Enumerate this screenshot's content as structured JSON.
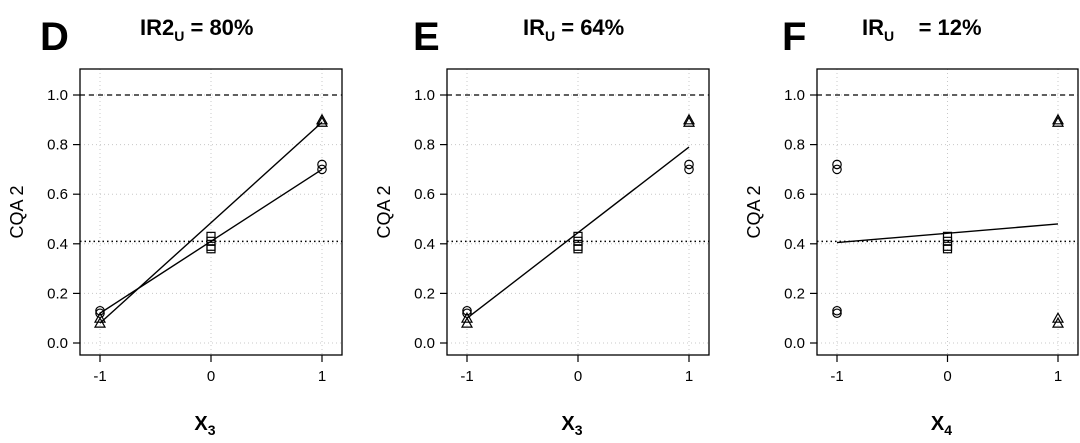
{
  "chart_data": [
    {
      "type": "scatter",
      "panel_letter": "D",
      "title": {
        "main": "IR2",
        "sub": "U",
        "rest": " = 80%"
      },
      "ylabel": "CQA 2",
      "xlabel": {
        "main": "X",
        "sub": "3"
      },
      "xlim": [
        -1,
        1
      ],
      "ylim": [
        0,
        1
      ],
      "x_ticks": [
        "-1",
        "0",
        "1"
      ],
      "y_ticks": [
        "0.0",
        "0.2",
        "0.4",
        "0.6",
        "0.8",
        "1.0"
      ],
      "reference_lines": {
        "dashed": 1.0,
        "dotted": 0.41
      },
      "series": [
        {
          "marker": "circle",
          "points": [
            [
              -1,
              0.13
            ],
            [
              -1,
              0.12
            ],
            [
              1,
              0.72
            ],
            [
              1,
              0.7
            ]
          ]
        },
        {
          "marker": "square",
          "points": [
            [
              0,
              0.43
            ],
            [
              0,
              0.41
            ],
            [
              0,
              0.39
            ],
            [
              0,
              0.38
            ]
          ]
        },
        {
          "marker": "triangle",
          "points": [
            [
              -1,
              0.1
            ],
            [
              -1,
              0.08
            ],
            [
              1,
              0.9
            ],
            [
              1,
              0.89
            ]
          ]
        }
      ],
      "fit_lines": [
        {
          "x": [
            -1,
            1
          ],
          "y": [
            0.08,
            0.89
          ]
        },
        {
          "x": [
            -1,
            1
          ],
          "y": [
            0.12,
            0.7
          ]
        }
      ]
    },
    {
      "type": "scatter",
      "panel_letter": "E",
      "title": {
        "main": "IR",
        "sub": "U",
        "rest": " = 64%"
      },
      "ylabel": "CQA 2",
      "xlabel": {
        "main": "X",
        "sub": "3"
      },
      "xlim": [
        -1,
        1
      ],
      "ylim": [
        0,
        1
      ],
      "x_ticks": [
        "-1",
        "0",
        "1"
      ],
      "y_ticks": [
        "0.0",
        "0.2",
        "0.4",
        "0.6",
        "0.8",
        "1.0"
      ],
      "reference_lines": {
        "dashed": 1.0,
        "dotted": 0.41
      },
      "series": [
        {
          "marker": "circle",
          "points": [
            [
              -1,
              0.13
            ],
            [
              -1,
              0.12
            ],
            [
              1,
              0.72
            ],
            [
              1,
              0.7
            ]
          ]
        },
        {
          "marker": "square",
          "points": [
            [
              0,
              0.43
            ],
            [
              0,
              0.41
            ],
            [
              0,
              0.39
            ],
            [
              0,
              0.38
            ]
          ]
        },
        {
          "marker": "triangle",
          "points": [
            [
              -1,
              0.1
            ],
            [
              -1,
              0.08
            ],
            [
              1,
              0.9
            ],
            [
              1,
              0.89
            ]
          ]
        }
      ],
      "fit_lines": [
        {
          "x": [
            -1,
            1
          ],
          "y": [
            0.1,
            0.79
          ]
        }
      ]
    },
    {
      "type": "scatter",
      "panel_letter": "F",
      "title": {
        "main": "IR",
        "sub": "U",
        "rest": "    = 12%"
      },
      "ylabel": "CQA 2",
      "xlabel": {
        "main": "X",
        "sub": "4"
      },
      "xlim": [
        -1,
        1
      ],
      "ylim": [
        0,
        1
      ],
      "x_ticks": [
        "-1",
        "0",
        "1"
      ],
      "y_ticks": [
        "0.0",
        "0.2",
        "0.4",
        "0.6",
        "0.8",
        "1.0"
      ],
      "reference_lines": {
        "dashed": 1.0,
        "dotted": 0.41
      },
      "series": [
        {
          "marker": "circle",
          "points": [
            [
              -1,
              0.72
            ],
            [
              -1,
              0.7
            ],
            [
              -1,
              0.13
            ],
            [
              -1,
              0.12
            ]
          ]
        },
        {
          "marker": "square",
          "points": [
            [
              0,
              0.43
            ],
            [
              0,
              0.41
            ],
            [
              0,
              0.39
            ],
            [
              0,
              0.38
            ]
          ]
        },
        {
          "marker": "triangle",
          "points": [
            [
              1,
              0.9
            ],
            [
              1,
              0.89
            ],
            [
              1,
              0.1
            ],
            [
              1,
              0.08
            ]
          ]
        }
      ],
      "fit_lines": [
        {
          "x": [
            -1,
            1
          ],
          "y": [
            0.405,
            0.48
          ]
        }
      ]
    }
  ],
  "colors": {
    "background": "#ffffff",
    "ink": "#000000",
    "grid": "#c8c8c8"
  }
}
